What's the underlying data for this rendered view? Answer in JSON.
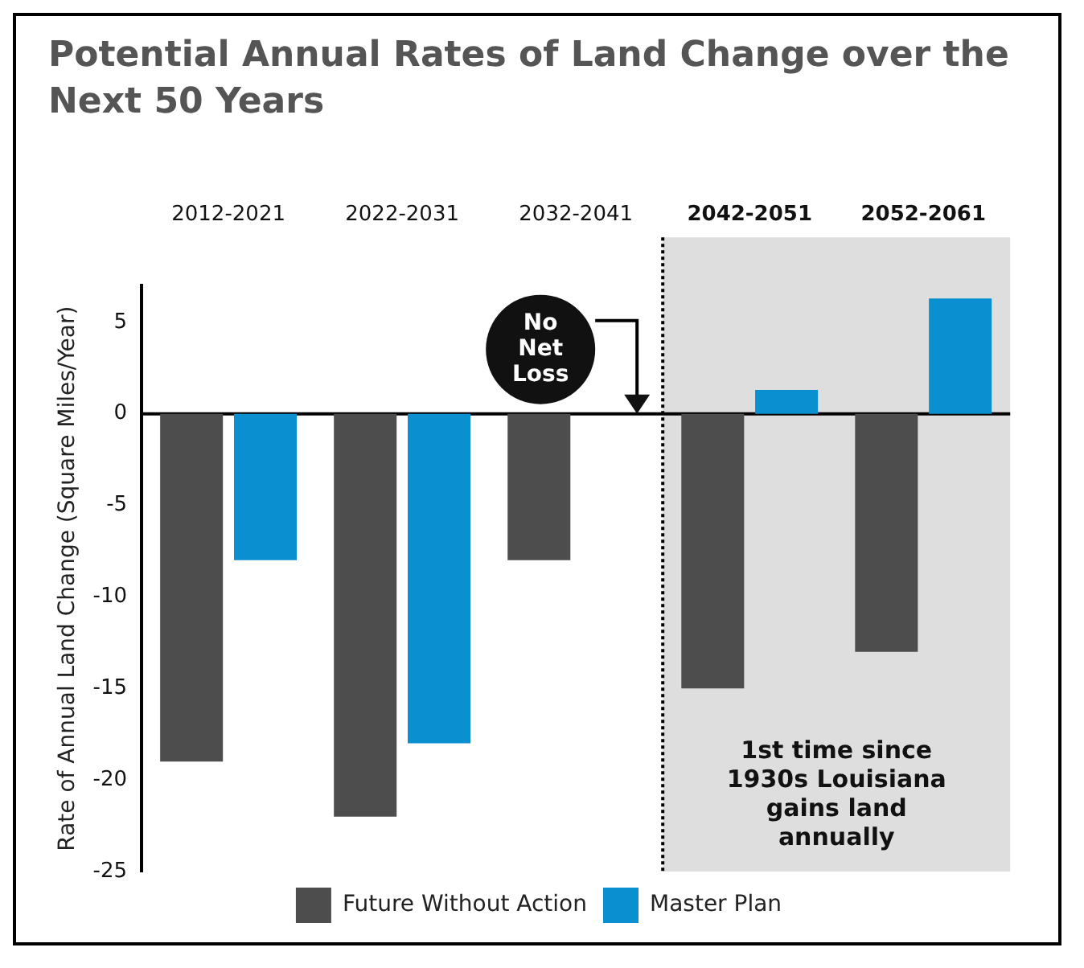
{
  "chart_data": {
    "type": "bar",
    "title": "Potential Annual Rates of Land Change over the Next 50 Years",
    "ylabel": "Rate of Annual Land Change (Square Miles/Year)",
    "categories": [
      "2012-2021",
      "2022-2031",
      "2032-2041",
      "2042-2051",
      "2052-2061"
    ],
    "series": [
      {
        "name": "Future Without Action",
        "color": "#4d4d4d",
        "values": [
          -19,
          -22,
          -8,
          -15,
          -13
        ]
      },
      {
        "name": "Master Plan",
        "color": "#0a8fd0",
        "values": [
          -8,
          -18,
          null,
          1.3,
          6.3
        ]
      }
    ],
    "ylim": [
      -25,
      7
    ],
    "yticks": [
      -25,
      -20,
      -15,
      -10,
      -5,
      0,
      5
    ],
    "bands": [
      {
        "axis": "x",
        "from": "2042-2051",
        "to": "2052-2061",
        "color": "#dedede"
      }
    ],
    "ref_lines": [
      {
        "axis": "x",
        "value": "2042-2051",
        "color": "#000000",
        "line_style": "dotted"
      }
    ],
    "annotations": [
      {
        "text": "No Net Loss",
        "y": 0
      },
      "1st time since 1930s Louisiana gains land annually"
    ],
    "grid": false,
    "legend": "bottom"
  }
}
